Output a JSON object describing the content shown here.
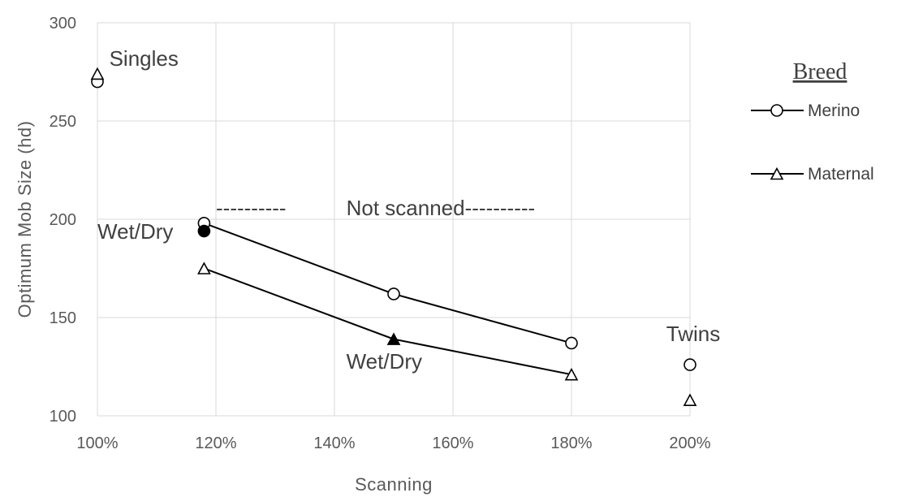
{
  "chart_data": {
    "type": "scatter",
    "title": "",
    "xlabel": "Scanning",
    "ylabel": "Optimum Mob Size (hd)",
    "xlim": [
      1.0,
      2.0
    ],
    "ylim": [
      100,
      300
    ],
    "x_ticks": [
      1.0,
      1.2,
      1.4,
      1.6,
      1.8,
      2.0
    ],
    "x_tick_labels": [
      "100%",
      "120%",
      "140%",
      "160%",
      "180%",
      "200%"
    ],
    "y_ticks": [
      100,
      150,
      200,
      250,
      300
    ],
    "y_tick_labels": [
      "100",
      "150",
      "200",
      "250",
      "300"
    ],
    "grid": true,
    "legend": {
      "title": "Breed",
      "position": "right",
      "entries": [
        {
          "name": "Merino",
          "marker": "open-circle"
        },
        {
          "name": "Maternal",
          "marker": "open-triangle"
        }
      ]
    },
    "series": [
      {
        "name": "Merino",
        "marker": "open-circle",
        "line": {
          "x": [
            1.18,
            1.5,
            1.8
          ],
          "y": [
            198,
            162,
            137
          ]
        },
        "points": [
          {
            "x": 1.0,
            "y": 270,
            "filled": false
          },
          {
            "x": 1.18,
            "y": 198,
            "filled": false
          },
          {
            "x": 1.18,
            "y": 194,
            "filled": true
          },
          {
            "x": 1.5,
            "y": 162,
            "filled": false
          },
          {
            "x": 1.8,
            "y": 137,
            "filled": false
          },
          {
            "x": 2.0,
            "y": 126,
            "filled": false
          }
        ]
      },
      {
        "name": "Maternal",
        "marker": "open-triangle",
        "line": {
          "x": [
            1.18,
            1.5,
            1.8
          ],
          "y": [
            175,
            139,
            121
          ]
        },
        "points": [
          {
            "x": 1.0,
            "y": 274,
            "filled": false
          },
          {
            "x": 1.18,
            "y": 175,
            "filled": false
          },
          {
            "x": 1.5,
            "y": 139,
            "filled": true
          },
          {
            "x": 1.8,
            "y": 121,
            "filled": false
          },
          {
            "x": 2.0,
            "y": 108,
            "filled": false
          }
        ]
      }
    ],
    "annotations": [
      {
        "text": "Singles",
        "x": 1.02,
        "y": 278
      },
      {
        "text": "----------",
        "x": 1.2,
        "y": 202
      },
      {
        "text": "Not scanned",
        "x": 1.42,
        "y": 202
      },
      {
        "text": "----------",
        "x": 1.62,
        "y": 202
      },
      {
        "text": "Wet/Dry",
        "x": 1.0,
        "y": 190
      },
      {
        "text": "Wet/Dry",
        "x": 1.42,
        "y": 124
      },
      {
        "text": "Twins",
        "x": 1.96,
        "y": 138
      }
    ]
  }
}
